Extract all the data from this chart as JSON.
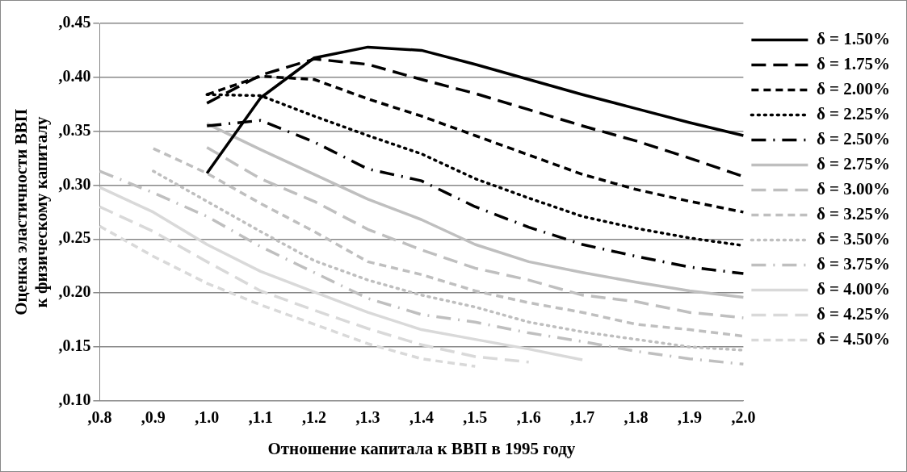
{
  "chart_data": {
    "type": "line",
    "xlabel": "Отношение капитала к ВВП в 1995 году",
    "ylabel": "Оценка эластичности ВВП к физическому капиталу",
    "categories": [
      ",0.8",
      ",0.9",
      ",1.0",
      ",1.1",
      ",1.2",
      ",1.3",
      ",1.4",
      ",1.5",
      ",1.6",
      ",1.7",
      ",1.8",
      ",1.9",
      ",2.0"
    ],
    "ylim": [
      0.1,
      0.45
    ],
    "yticks": [
      {
        "value": 0.1,
        "label": ",0.10"
      },
      {
        "value": 0.15,
        "label": ",0.15"
      },
      {
        "value": 0.2,
        "label": ",0.20"
      },
      {
        "value": 0.25,
        "label": ",0.25"
      },
      {
        "value": 0.3,
        "label": ",0.30"
      },
      {
        "value": 0.35,
        "label": ",0.35"
      },
      {
        "value": 0.4,
        "label": ",0.40"
      },
      {
        "value": 0.45,
        "label": ",0.45"
      }
    ],
    "grid": "y",
    "legend": "right",
    "marker": "none",
    "series": [
      {
        "name": "δ = 1.50%",
        "color": "#000000",
        "line_style": "solid",
        "values": [
          null,
          null,
          0.311,
          0.381,
          0.418,
          0.428,
          0.425,
          0.412,
          0.398,
          0.384,
          0.371,
          0.358,
          0.346
        ]
      },
      {
        "name": "δ = 1.75%",
        "color": "#000000",
        "line_style": "longdash",
        "values": [
          null,
          null,
          0.376,
          0.402,
          0.417,
          0.412,
          0.398,
          0.385,
          0.37,
          0.355,
          0.341,
          0.325,
          0.308
        ]
      },
      {
        "name": "δ = 2.00%",
        "color": "#000000",
        "line_style": "dashed",
        "values": [
          null,
          null,
          0.384,
          0.401,
          0.398,
          0.38,
          0.364,
          0.346,
          0.328,
          0.31,
          0.296,
          0.285,
          0.275
        ]
      },
      {
        "name": "δ = 2.25%",
        "color": "#000000",
        "line_style": "dotted",
        "values": [
          null,
          null,
          0.384,
          0.383,
          0.364,
          0.346,
          0.329,
          0.306,
          0.288,
          0.271,
          0.26,
          0.251,
          0.244
        ]
      },
      {
        "name": "δ = 2.50%",
        "color": "#000000",
        "line_style": "dashdot",
        "values": [
          null,
          null,
          0.355,
          0.36,
          0.34,
          0.315,
          0.304,
          0.28,
          0.261,
          0.245,
          0.234,
          0.224,
          0.218
        ]
      },
      {
        "name": "δ = 2.75%",
        "color": "#bfbfbf",
        "line_style": "solid",
        "values": [
          null,
          null,
          0.357,
          0.333,
          0.31,
          0.287,
          0.268,
          0.245,
          0.229,
          0.219,
          0.21,
          0.202,
          0.196
        ]
      },
      {
        "name": "δ = 3.00%",
        "color": "#bfbfbf",
        "line_style": "longdash",
        "values": [
          null,
          null,
          0.335,
          0.306,
          0.285,
          0.259,
          0.24,
          0.223,
          0.212,
          0.198,
          0.192,
          0.182,
          0.177
        ]
      },
      {
        "name": "δ = 3.25%",
        "color": "#bfbfbf",
        "line_style": "dashed",
        "values": [
          null,
          0.334,
          0.311,
          0.283,
          0.257,
          0.229,
          0.217,
          0.202,
          0.191,
          0.182,
          0.171,
          0.166,
          0.16
        ]
      },
      {
        "name": "δ = 3.50%",
        "color": "#bfbfbf",
        "line_style": "dotted",
        "values": [
          null,
          0.313,
          0.285,
          0.257,
          0.23,
          0.212,
          0.198,
          0.187,
          0.173,
          0.164,
          0.157,
          0.15,
          0.147
        ]
      },
      {
        "name": "δ = 3.75%",
        "color": "#bfbfbf",
        "line_style": "dashdot",
        "values": [
          0.313,
          0.293,
          0.271,
          0.243,
          0.219,
          0.195,
          0.18,
          0.173,
          0.163,
          0.155,
          0.146,
          0.139,
          0.134
        ]
      },
      {
        "name": "δ = 4.00%",
        "color": "#d9d9d9",
        "line_style": "solid",
        "values": [
          0.298,
          0.275,
          0.245,
          0.22,
          0.201,
          0.182,
          0.166,
          0.157,
          0.148,
          0.138,
          null,
          null,
          null
        ]
      },
      {
        "name": "δ = 4.25%",
        "color": "#d9d9d9",
        "line_style": "longdash",
        "values": [
          0.28,
          0.257,
          0.229,
          0.202,
          0.184,
          0.167,
          0.152,
          0.141,
          0.136,
          null,
          null,
          null,
          null
        ]
      },
      {
        "name": "δ = 4.50%",
        "color": "#d9d9d9",
        "line_style": "dashed",
        "values": [
          0.262,
          0.234,
          0.209,
          0.189,
          0.171,
          0.153,
          0.139,
          0.132,
          null,
          null,
          null,
          null,
          null
        ]
      }
    ]
  }
}
